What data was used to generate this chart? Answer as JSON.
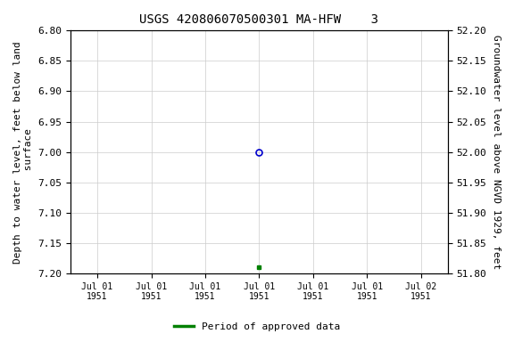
{
  "title": "USGS 420806070500301 MA-HFW    3",
  "ylabel_left": "Depth to water level, feet below land\n surface",
  "ylabel_right": "Groundwater level above NGVD 1929, feet",
  "ylim_left": [
    6.8,
    7.2
  ],
  "ylim_right": [
    51.8,
    52.2
  ],
  "yticks_left": [
    6.8,
    6.85,
    6.9,
    6.95,
    7.0,
    7.05,
    7.1,
    7.15,
    7.2
  ],
  "yticks_right": [
    51.8,
    51.85,
    51.9,
    51.95,
    52.0,
    52.05,
    52.1,
    52.15,
    52.2
  ],
  "xtick_labels": [
    "Jul 01\n1951",
    "Jul 01\n1951",
    "Jul 01\n1951",
    "Jul 01\n1951",
    "Jul 01\n1951",
    "Jul 01\n1951",
    "Jul 02\n1951"
  ],
  "xtick_positions": [
    0,
    1,
    2,
    3,
    4,
    5,
    6
  ],
  "xlim": [
    -0.5,
    6.5
  ],
  "data_point_open_x": 3,
  "data_point_open_y": 7.0,
  "data_point_open_color": "#0000cc",
  "data_point_filled_x": 3,
  "data_point_filled_y": 7.19,
  "data_point_filled_color": "#008000",
  "legend_label": "Period of approved data",
  "legend_color": "#008000",
  "background_color": "#ffffff",
  "grid_color": "#cccccc",
  "title_fontsize": 10,
  "axis_fontsize": 8,
  "tick_fontsize": 8,
  "font_family": "monospace"
}
